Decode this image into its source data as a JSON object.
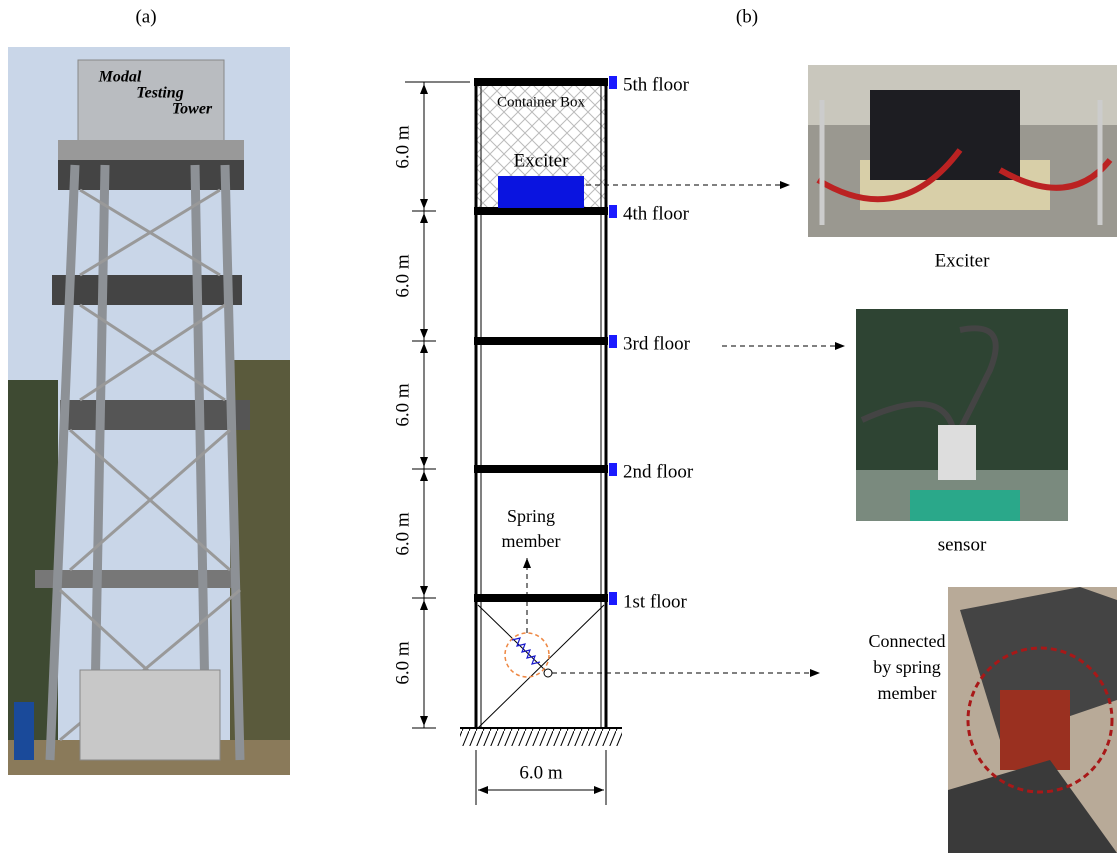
{
  "panel_a": {
    "label": "(a)",
    "sign": [
      "Modal",
      "Testing",
      "Tower"
    ]
  },
  "panel_b": {
    "label": "(b)",
    "floors": [
      "5th floor",
      "4th floor",
      "3rd floor",
      "2nd floor",
      "1st floor"
    ],
    "story_heights": [
      "6.0 m",
      "6.0 m",
      "6.0 m",
      "6.0 m",
      "6.0 m"
    ],
    "width": "6.0 m",
    "container_box": "Container Box",
    "exciter": "Exciter",
    "spring_member": [
      "Spring",
      "member"
    ],
    "captions": {
      "exciter": "Exciter",
      "sensor": "sensor",
      "connected": [
        "Connected",
        "by spring",
        "member"
      ]
    }
  }
}
